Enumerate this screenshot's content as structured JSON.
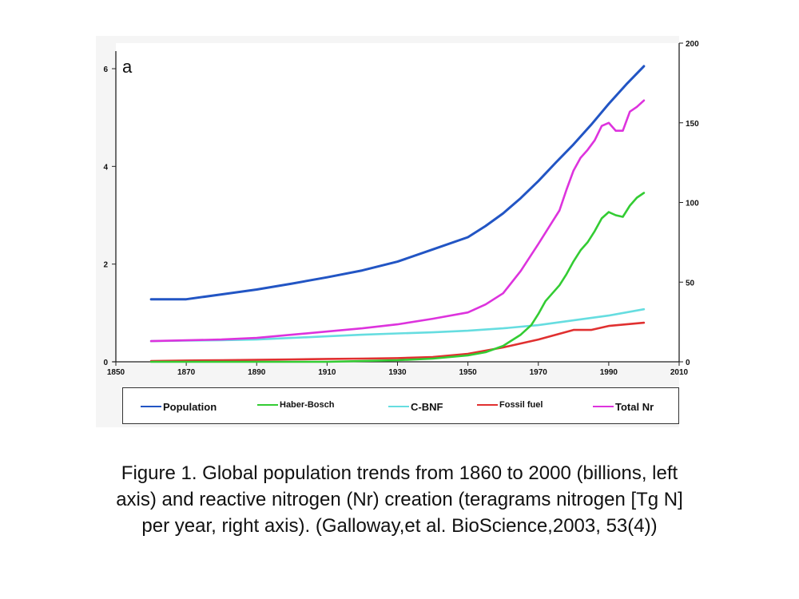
{
  "chart_data": {
    "type": "line",
    "panel_label": "a",
    "x_ticks": [
      1850,
      1870,
      1890,
      1910,
      1930,
      1950,
      1970,
      1990,
      2010
    ],
    "xlim": [
      1850,
      2010
    ],
    "left_axis": {
      "ticks": [
        0,
        2,
        4,
        6
      ],
      "ylim": [
        0,
        6.5
      ]
    },
    "right_axis": {
      "ticks": [
        0,
        50,
        100,
        150,
        200
      ],
      "ylim": [
        0,
        200
      ]
    },
    "series": [
      {
        "name": "Population",
        "axis": "left",
        "color": "#2255c4",
        "x": [
          1860,
          1870,
          1880,
          1890,
          1900,
          1910,
          1920,
          1930,
          1940,
          1950,
          1955,
          1960,
          1965,
          1970,
          1975,
          1980,
          1985,
          1990,
          1995,
          2000
        ],
        "y": [
          1.28,
          1.28,
          1.38,
          1.48,
          1.6,
          1.73,
          1.87,
          2.05,
          2.3,
          2.55,
          2.78,
          3.04,
          3.35,
          3.7,
          4.08,
          4.45,
          4.85,
          5.28,
          5.68,
          6.05
        ]
      },
      {
        "name": "Haber-Bosch",
        "axis": "right",
        "color": "#33cc33",
        "x": [
          1860,
          1910,
          1920,
          1930,
          1940,
          1950,
          1955,
          1960,
          1965,
          1968,
          1970,
          1972,
          1974,
          1976,
          1978,
          1980,
          1982,
          1984,
          1986,
          1988,
          1990,
          1992,
          1994,
          1996,
          1998,
          2000
        ],
        "y": [
          0,
          0,
          0.5,
          1,
          2,
          4,
          6,
          10,
          17,
          23,
          30,
          38,
          43,
          48,
          55,
          63,
          70,
          75,
          82,
          90,
          94,
          92,
          91,
          98,
          103,
          106
        ]
      },
      {
        "name": "C-BNF",
        "axis": "right",
        "color": "#66dde0",
        "x": [
          1860,
          1870,
          1880,
          1890,
          1900,
          1910,
          1920,
          1930,
          1940,
          1950,
          1960,
          1970,
          1980,
          1990,
          2000
        ],
        "y": [
          13,
          13.3,
          13.6,
          14,
          15,
          16,
          17,
          17.8,
          18.5,
          19.5,
          21,
          23,
          26,
          29,
          33
        ]
      },
      {
        "name": "Fossil fuel",
        "axis": "right",
        "color": "#e03030",
        "x": [
          1860,
          1870,
          1880,
          1890,
          1900,
          1910,
          1920,
          1930,
          1940,
          1950,
          1960,
          1970,
          1975,
          1980,
          1985,
          1990,
          1995,
          2000
        ],
        "y": [
          0.5,
          0.8,
          1,
          1.2,
          1.5,
          1.8,
          2,
          2.3,
          3,
          5,
          9,
          14,
          17,
          20,
          20,
          22.5,
          23.5,
          24.5
        ]
      },
      {
        "name": "Total Nr",
        "axis": "right",
        "color": "#dd33dd",
        "x": [
          1860,
          1870,
          1880,
          1890,
          1900,
          1910,
          1920,
          1930,
          1940,
          1950,
          1955,
          1960,
          1965,
          1970,
          1972,
          1974,
          1976,
          1978,
          1980,
          1982,
          1984,
          1986,
          1988,
          1990,
          1992,
          1994,
          1996,
          1998,
          2000
        ],
        "y": [
          13,
          13.5,
          14,
          15,
          17,
          19,
          21,
          23.5,
          27,
          31,
          36,
          43,
          57,
          74,
          81,
          88,
          95,
          108,
          120,
          128,
          133,
          139,
          148,
          150,
          145,
          145,
          157,
          160,
          164
        ]
      }
    ],
    "grid": false,
    "legend_position": "bottom"
  },
  "caption_lines": [
    "Figure 1. Global population trends from 1860 to 2000 (billions, left",
    "axis) and reactive nitrogen (Nr) creation (teragrams nitrogen [Tg N]",
    "per year, right axis). (Galloway,et al. BioScience,2003, 53(4))"
  ]
}
